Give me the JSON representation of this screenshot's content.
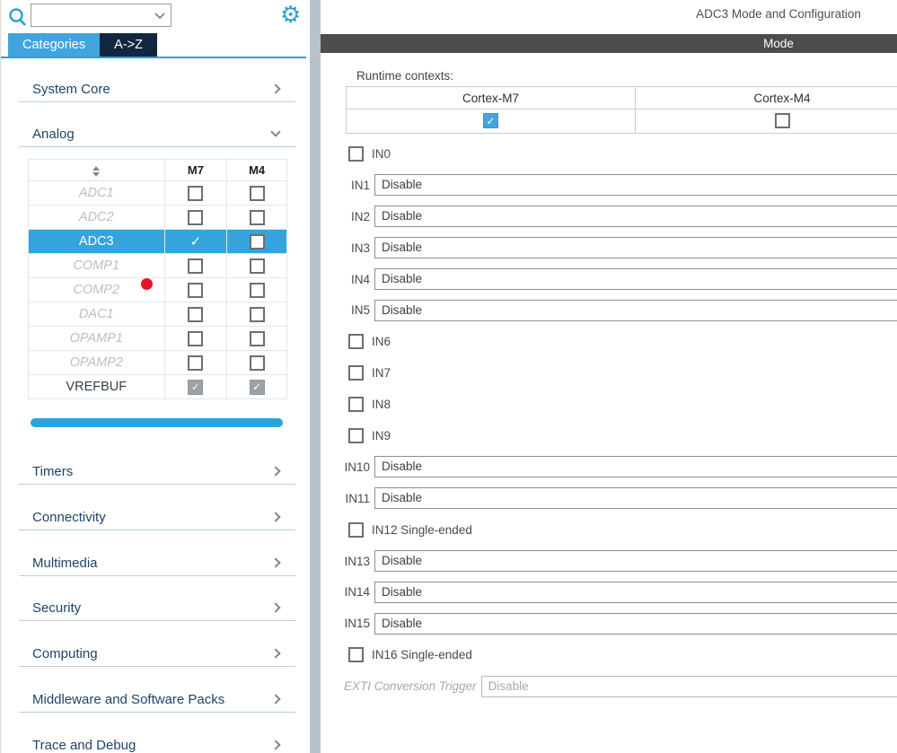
{
  "left_panel": {
    "search": {
      "value": ""
    },
    "tabs": [
      {
        "label": "Categories",
        "active": true
      },
      {
        "label": "A->Z",
        "active": false
      }
    ],
    "sections_top": [
      {
        "label": "System Core",
        "state": "collapsed"
      },
      {
        "label": "Analog",
        "state": "expanded"
      }
    ],
    "sections_bottom": [
      {
        "label": "Timers",
        "state": "collapsed"
      },
      {
        "label": "Connectivity",
        "state": "collapsed"
      },
      {
        "label": "Multimedia",
        "state": "collapsed"
      },
      {
        "label": "Security",
        "state": "collapsed"
      },
      {
        "label": "Computing",
        "state": "collapsed"
      },
      {
        "label": "Middleware and Software Packs",
        "state": "collapsed"
      },
      {
        "label": "Trace and Debug",
        "state": "collapsed"
      }
    ],
    "analog_table": {
      "columns": [
        "",
        "M7",
        "M4"
      ],
      "rows": [
        {
          "name": "ADC1",
          "style": "dimmed",
          "m7": "unchecked",
          "m4": "unchecked"
        },
        {
          "name": "ADC2",
          "style": "dimmed",
          "m7": "unchecked",
          "m4": "unchecked"
        },
        {
          "name": "ADC3",
          "style": "selected",
          "m7": "check-white",
          "m4": "unchecked"
        },
        {
          "name": "COMP1",
          "style": "dimmed",
          "m7": "unchecked",
          "m4": "unchecked"
        },
        {
          "name": "COMP2",
          "style": "dimmed",
          "m7": "unchecked",
          "m4": "unchecked"
        },
        {
          "name": "DAC1",
          "style": "dimmed",
          "m7": "unchecked",
          "m4": "unchecked"
        },
        {
          "name": "OPAMP1",
          "style": "dimmed",
          "m7": "unchecked",
          "m4": "unchecked"
        },
        {
          "name": "OPAMP2",
          "style": "dimmed",
          "m7": "unchecked",
          "m4": "unchecked"
        },
        {
          "name": "VREFBUF",
          "style": "normal",
          "m7": "checked-gray",
          "m4": "checked-gray"
        }
      ]
    }
  },
  "main_panel": {
    "title": "ADC3 Mode and Configuration",
    "section_header": "Mode",
    "runtime_contexts": {
      "label": "Runtime contexts:",
      "columns": [
        "Cortex-M7",
        "Cortex-M4"
      ],
      "checked": [
        true,
        false
      ]
    },
    "mode_rows": [
      {
        "kind": "checkbox",
        "label": "IN0",
        "checked": false
      },
      {
        "kind": "select",
        "label": "IN1",
        "value": "Disable"
      },
      {
        "kind": "select",
        "label": "IN2",
        "value": "Disable"
      },
      {
        "kind": "select",
        "label": "IN3",
        "value": "Disable"
      },
      {
        "kind": "select",
        "label": "IN4",
        "value": "Disable"
      },
      {
        "kind": "select",
        "label": "IN5",
        "value": "Disable"
      },
      {
        "kind": "checkbox",
        "label": "IN6",
        "checked": false
      },
      {
        "kind": "checkbox",
        "label": "IN7",
        "checked": false
      },
      {
        "kind": "checkbox",
        "label": "IN8",
        "checked": false
      },
      {
        "kind": "checkbox",
        "label": "IN9",
        "checked": false
      },
      {
        "kind": "select",
        "label": "IN10",
        "value": "Disable"
      },
      {
        "kind": "select",
        "label": "IN11",
        "value": "Disable"
      },
      {
        "kind": "checkbox",
        "label": "IN12 Single-ended",
        "checked": false
      },
      {
        "kind": "select",
        "label": "IN13",
        "value": "Disable"
      },
      {
        "kind": "select",
        "label": "IN14",
        "value": "Disable"
      },
      {
        "kind": "select",
        "label": "IN15",
        "value": "Disable"
      },
      {
        "kind": "checkbox",
        "label": "IN16 Single-ended",
        "checked": false
      },
      {
        "kind": "select",
        "label": "EXTI Conversion Trigger",
        "value": "Disable",
        "disabled": true
      }
    ]
  },
  "colors": {
    "accent_blue": "#35a3dc",
    "tab_dark": "#12273f",
    "mode_bar": "#4d4d4d",
    "checkbox_blue": "#41a6e0",
    "scrollbar_blue": "#2ba2d9",
    "divider_gray": "#b7c3cb",
    "red_dot": "#e8132b",
    "icon_blue": "#2b9fd6"
  }
}
